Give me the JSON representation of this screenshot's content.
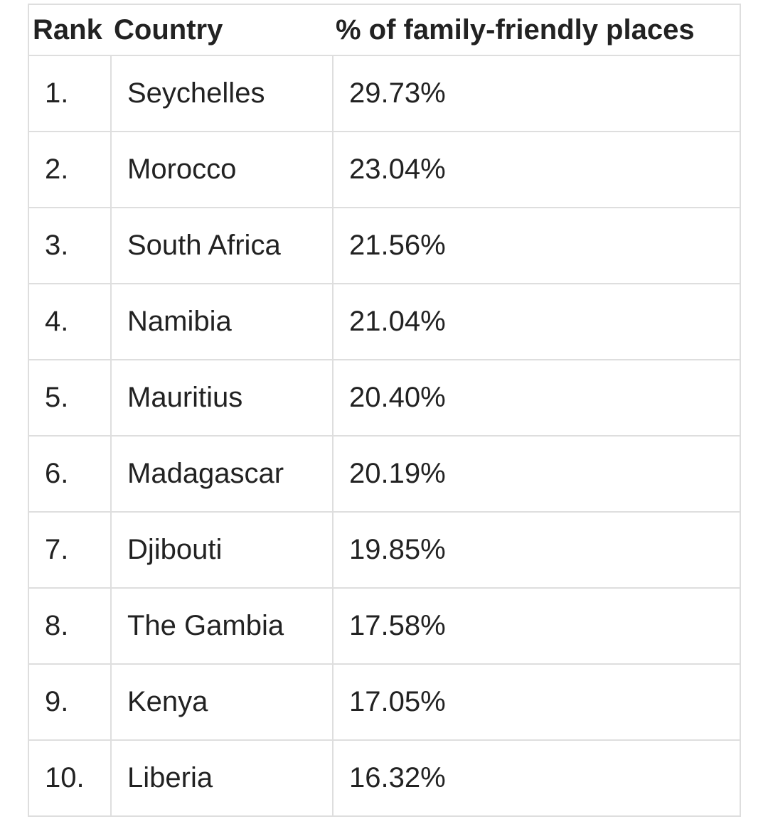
{
  "table": {
    "headers": {
      "rank": "Rank",
      "country": "Country",
      "percent": "% of family-friendly places"
    },
    "rows": [
      {
        "rank": "1.",
        "country": "Seychelles",
        "percent": "29.73%"
      },
      {
        "rank": "2.",
        "country": "Morocco",
        "percent": "23.04%"
      },
      {
        "rank": "3.",
        "country": "South Africa",
        "percent": "21.56%"
      },
      {
        "rank": "4.",
        "country": "Namibia",
        "percent": "21.04%"
      },
      {
        "rank": "5.",
        "country": "Mauritius",
        "percent": "20.40%"
      },
      {
        "rank": "6.",
        "country": "Madagascar",
        "percent": "20.19%"
      },
      {
        "rank": "7.",
        "country": "Djibouti",
        "percent": "19.85%"
      },
      {
        "rank": "8.",
        "country": "The Gambia",
        "percent": "17.58%"
      },
      {
        "rank": "9.",
        "country": "Kenya",
        "percent": "17.05%"
      },
      {
        "rank": "10.",
        "country": "Liberia",
        "percent": "16.32%"
      }
    ]
  }
}
